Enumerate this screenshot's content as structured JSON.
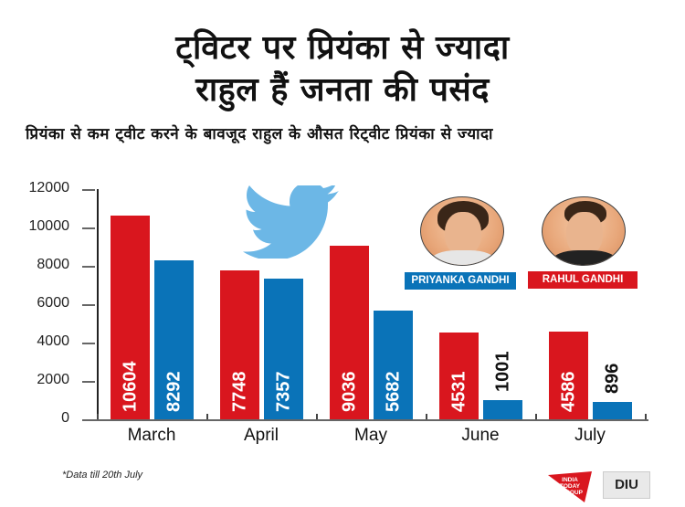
{
  "title": {
    "line1": "ट्विटर पर प्रियंका से ज्यादा",
    "line2": "राहुल हैं जनता की पसंद"
  },
  "subtitle": "प्रियंका से कम ट्वीट करने के बावजूद राहुल के औसत रिट्वीट प्रियंका से ज्यादा",
  "legend": {
    "priyanka": {
      "label": "PRIYANKA GANDHI",
      "color": "#0a73b8"
    },
    "rahul": {
      "label": "RAHUL GANDHI",
      "color": "#d9161e"
    }
  },
  "footnote": "*Data till 20th July",
  "logos": {
    "itg": "INDIA TODAY GROUP",
    "diu": "DIU"
  },
  "colors": {
    "rahul": "#d9161e",
    "priyanka": "#0a73b8",
    "twitter": "#6cb7e6"
  },
  "chart_data": {
    "type": "bar",
    "title": "ट्विटर पर प्रियंका से ज्यादा राहुल हैं जनता की पसंद",
    "subtitle": "प्रियंका से कम ट्वीट करने के बावजूद राहुल के औसत रिट्वीट प्रियंका से ज्यादा",
    "categories": [
      "March",
      "April",
      "May",
      "June",
      "July"
    ],
    "series": [
      {
        "name": "RAHUL GANDHI",
        "color": "#d9161e",
        "values": [
          10604,
          7748,
          9036,
          4531,
          4586
        ]
      },
      {
        "name": "PRIYANKA GANDHI",
        "color": "#0a73b8",
        "values": [
          8292,
          7357,
          5682,
          1001,
          896
        ]
      }
    ],
    "yticks": [
      0,
      2000,
      4000,
      6000,
      8000,
      10000,
      12000
    ],
    "ylim": [
      0,
      12000
    ],
    "xlabel": "",
    "ylabel": "",
    "grid": false,
    "legend_position": "top-right",
    "annotations": [
      "*Data till 20th July"
    ],
    "value_labels": {
      "March": [
        "10604",
        "8292"
      ],
      "April": [
        "7748",
        "7357"
      ],
      "May": [
        "9036",
        "5682"
      ],
      "June": [
        "4531",
        "1001"
      ],
      "July": [
        "4586",
        "896"
      ]
    }
  }
}
